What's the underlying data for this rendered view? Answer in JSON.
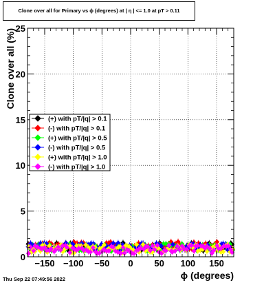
{
  "chart_data": {
    "type": "scatter",
    "title": "Clone  over all for Primary vs ϕ (degrees) at |  η | <= 1.0 at pT > 0.11",
    "xlabel": "ϕ (degrees)",
    "ylabel": "Clone  over all (%)",
    "xlim": [
      -180,
      180
    ],
    "ylim": [
      0,
      25
    ],
    "x_ticks": [
      -150,
      -100,
      -50,
      0,
      50,
      100,
      150
    ],
    "x_tick_labels": [
      "−150",
      "−100",
      "−50",
      "0",
      "50",
      "100",
      "150"
    ],
    "y_ticks": [
      0,
      5,
      10,
      15,
      20,
      25
    ],
    "y_tick_labels": [
      "0",
      "5",
      "10",
      "15",
      "20",
      "25"
    ],
    "grid": true,
    "legend_position": "left-middle",
    "series": [
      {
        "name": "(+) with pT/|q| > 0.1",
        "color": "#000000",
        "marker": "diamond",
        "level": 1.1
      },
      {
        "name": "(-) with pT/|q| > 0.1",
        "color": "#ff0000",
        "marker": "diamond",
        "level": 1.2
      },
      {
        "name": "(+) with pT/|q| > 0.5",
        "color": "#00ff00",
        "marker": "diamond",
        "level": 1.0
      },
      {
        "name": "(-) with pT/|q| > 0.5",
        "color": "#0000ff",
        "marker": "diamond",
        "level": 1.1
      },
      {
        "name": "(+) with pT/|q| > 1.0",
        "color": "#ffff00",
        "marker": "diamond",
        "level": 0.9
      },
      {
        "name": "(-) with pT/|q| > 1.0",
        "color": "#ff00ff",
        "marker": "diamond",
        "level": 0.8
      }
    ]
  },
  "footer_timestamp": "Thu Sep 22 07:49:56 2022"
}
